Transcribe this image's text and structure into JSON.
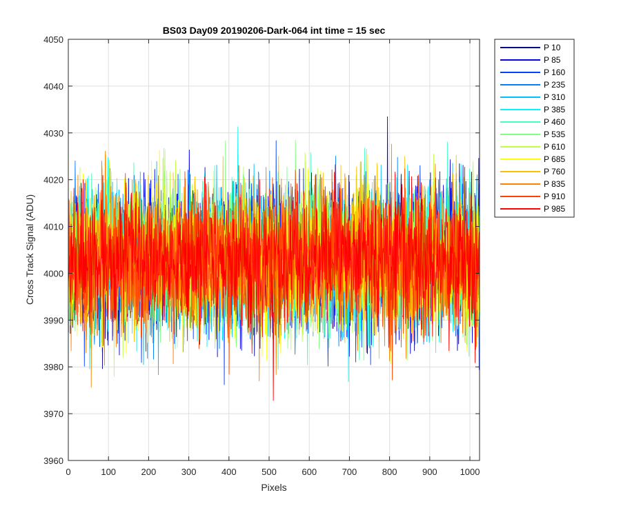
{
  "chart_data": {
    "type": "line",
    "title": "BS03 Day09 20190206-Dark-064 int time = 15 sec",
    "xlabel": "Pixels",
    "ylabel": "Cross Track Signal (ADU)",
    "xlim": [
      0,
      1024
    ],
    "ylim": [
      3960,
      4050
    ],
    "xticks": [
      0,
      100,
      200,
      300,
      400,
      500,
      600,
      700,
      800,
      900,
      1000
    ],
    "yticks": [
      3960,
      3970,
      3980,
      3990,
      4000,
      4010,
      4020,
      4030,
      4040,
      4050
    ],
    "grid": true,
    "legend_position": "outside-top-right",
    "noise_model": {
      "points_per_series": 1024,
      "mean": 4003,
      "std": 7.5
    },
    "series": [
      {
        "name": "P 10",
        "color": "#00008f"
      },
      {
        "name": "P 85",
        "color": "#0000e6"
      },
      {
        "name": "P 160",
        "color": "#0040ff"
      },
      {
        "name": "P 235",
        "color": "#0080ff"
      },
      {
        "name": "P 310",
        "color": "#00bfff"
      },
      {
        "name": "P 385",
        "color": "#00f5ff"
      },
      {
        "name": "P 460",
        "color": "#40ffbf"
      },
      {
        "name": "P 535",
        "color": "#80ff80"
      },
      {
        "name": "P 610",
        "color": "#bfff40"
      },
      {
        "name": "P 685",
        "color": "#ffff00"
      },
      {
        "name": "P 760",
        "color": "#ffbf00"
      },
      {
        "name": "P 835",
        "color": "#ff8000"
      },
      {
        "name": "P 910",
        "color": "#ff4000"
      },
      {
        "name": "P 985",
        "color": "#ff0000"
      }
    ]
  }
}
